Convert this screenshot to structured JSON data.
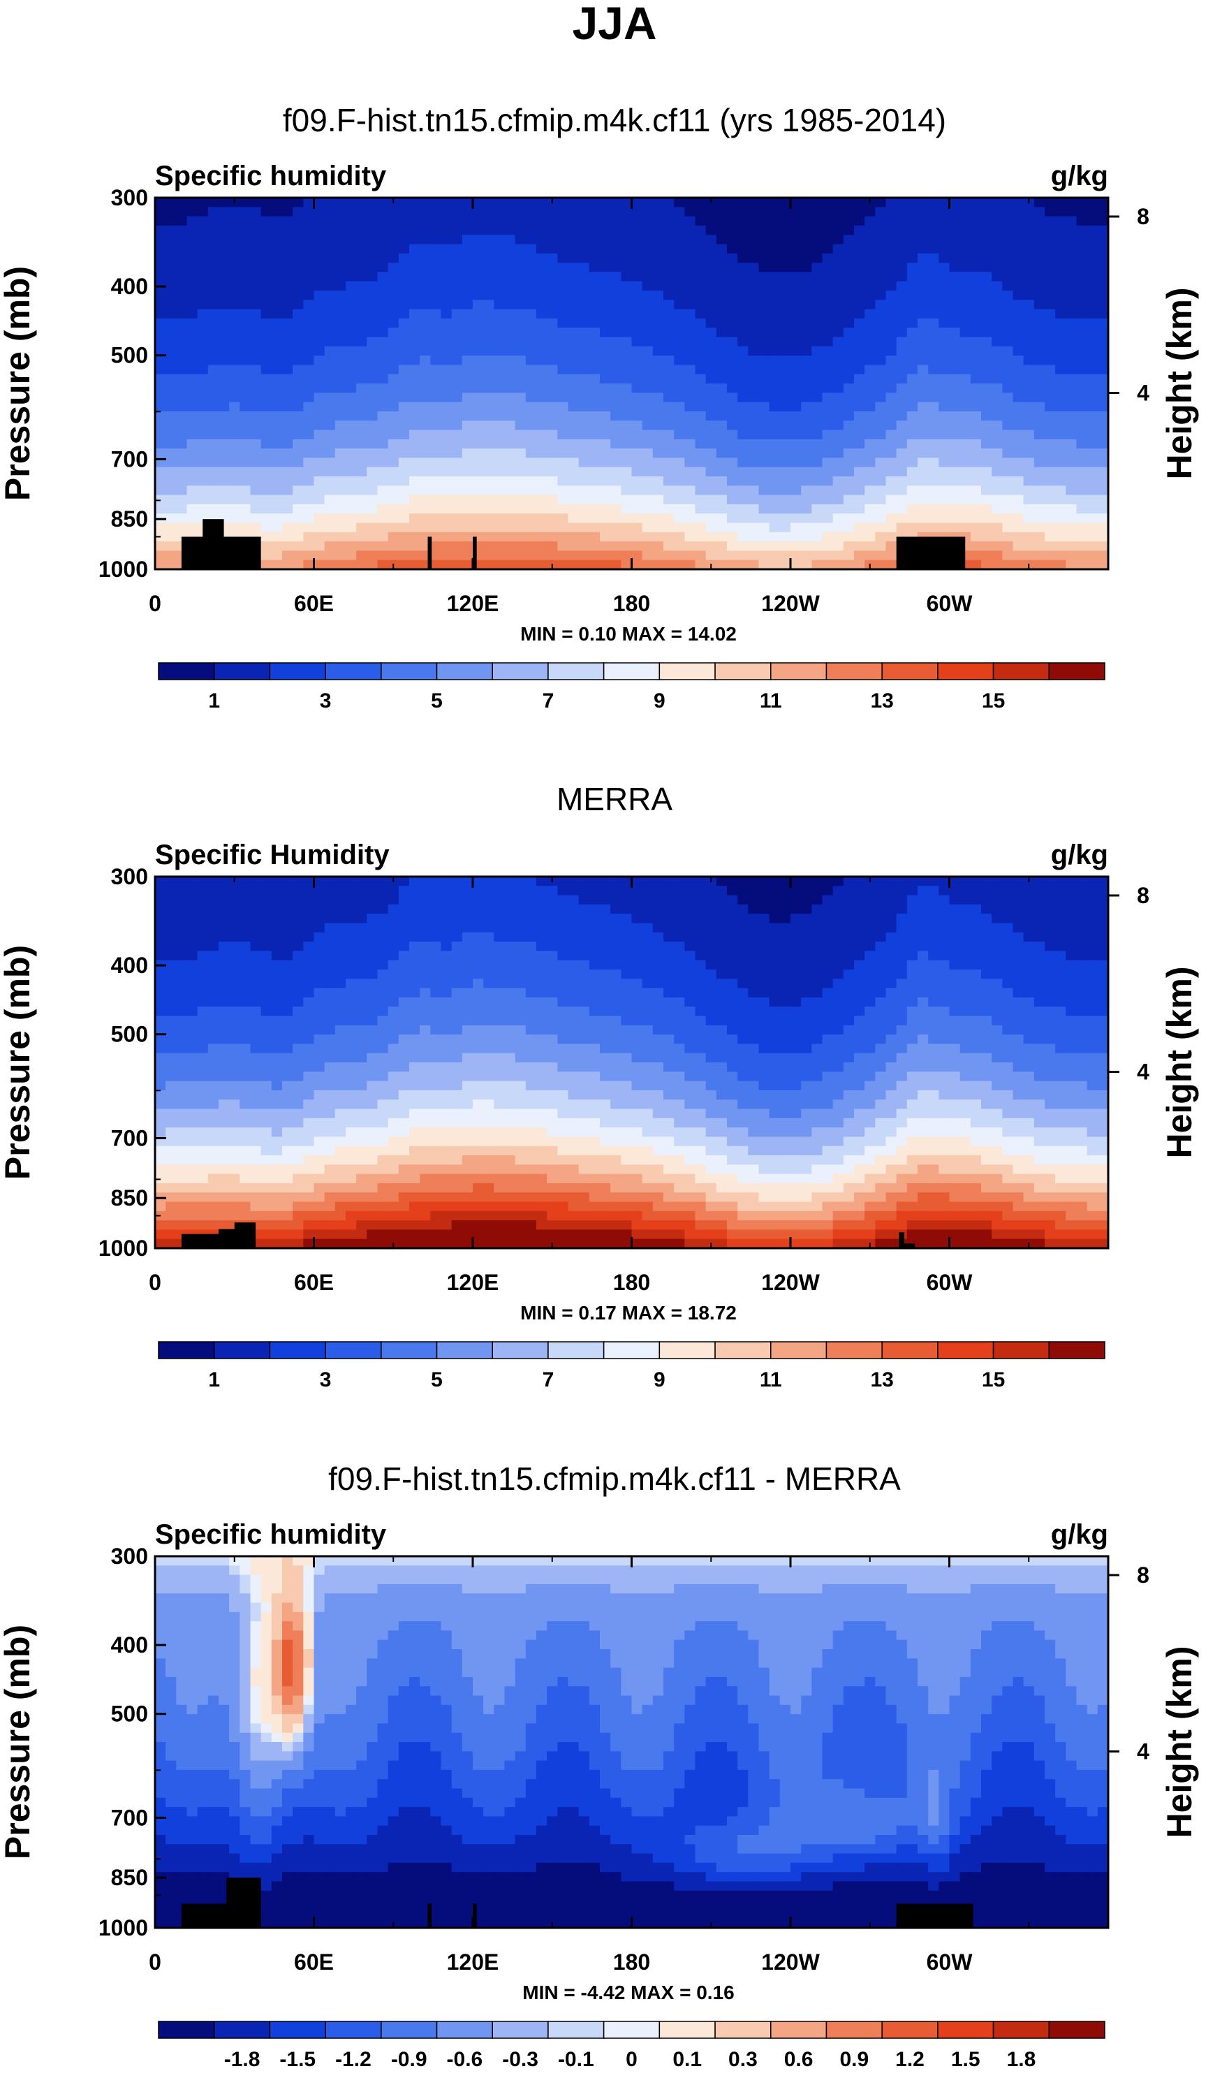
{
  "figure": {
    "title": "JJA"
  },
  "colorbar_palette": [
    "#050c7c",
    "#0a25b3",
    "#1140dc",
    "#2c5de8",
    "#4a79ee",
    "#7096f2",
    "#9db5f5",
    "#c8d8f9",
    "#eaf0fc",
    "#fbe8d9",
    "#f8cbb1",
    "#f4a583",
    "#ef7f58",
    "#e85c34",
    "#e4401b",
    "#c42c11",
    "#8f0c06"
  ],
  "chart_data": [
    {
      "type": "heatmap",
      "title": "f09.F-hist.tn15.cfmip.m4k.cf11 (yrs 1985-2014)",
      "left_label": "Specific humidity",
      "right_label": "g/kg",
      "ylabel": "Pressure (mb)",
      "ylabel_right": "Height (km)",
      "yticks": [
        "300",
        "400",
        "500",
        "700",
        "850",
        "1000"
      ],
      "yticks_right": [
        "8",
        "4"
      ],
      "xticks": [
        "0",
        "60E",
        "120E",
        "180",
        "120W",
        "60W"
      ],
      "xlim": [
        0,
        360
      ],
      "ylim": [
        1000,
        300
      ],
      "minmax": "MIN =   0.10  MAX =  14.02",
      "colorbar_labels": [
        "1",
        "3",
        "5",
        "7",
        "9",
        "11",
        "13",
        "15"
      ],
      "field": "abs",
      "surface": [
        [
          10,
          40,
          900
        ],
        [
          18,
          26,
          850
        ],
        [
          103,
          104.5,
          900
        ],
        [
          120,
          121.5,
          900
        ],
        [
          280,
          306,
          900
        ]
      ],
      "stats": {
        "min": 0.1,
        "max": 14.02
      }
    },
    {
      "type": "heatmap",
      "title": "MERRA",
      "left_label": "Specific Humidity",
      "right_label": "g/kg",
      "ylabel": "Pressure (mb)",
      "ylabel_right": "Height (km)",
      "yticks": [
        "300",
        "400",
        "500",
        "700",
        "850",
        "1000"
      ],
      "yticks_right": [
        "8",
        "4"
      ],
      "xticks": [
        "0",
        "60E",
        "120E",
        "180",
        "120W",
        "60W"
      ],
      "xlim": [
        0,
        360
      ],
      "ylim": [
        1000,
        300
      ],
      "minmax": "MIN =   0.17  MAX =  18.72",
      "colorbar_labels": [
        "1",
        "3",
        "5",
        "7",
        "9",
        "11",
        "13",
        "15"
      ],
      "field": "abs2",
      "surface": [
        [
          10,
          38,
          955
        ],
        [
          24,
          32,
          940
        ],
        [
          30,
          38,
          920
        ],
        [
          281,
          283,
          950
        ],
        [
          282,
          287,
          985
        ]
      ],
      "stats": {
        "min": 0.17,
        "max": 18.72
      }
    },
    {
      "type": "heatmap",
      "title": "f09.F-hist.tn15.cfmip.m4k.cf11 - MERRA",
      "left_label": "Specific humidity",
      "right_label": "g/kg",
      "ylabel": "Pressure (mb)",
      "ylabel_right": "Height (km)",
      "yticks": [
        "300",
        "400",
        "500",
        "700",
        "850",
        "1000"
      ],
      "yticks_right": [
        "8",
        "4"
      ],
      "xticks": [
        "0",
        "60E",
        "120E",
        "180",
        "120W",
        "60W"
      ],
      "xlim": [
        0,
        360
      ],
      "ylim": [
        1000,
        300
      ],
      "minmax": "MIN =  -4.42  MAX =   0.16",
      "colorbar_labels": [
        "-1.8",
        "-1.5",
        "-1.2",
        "-0.9",
        "-0.6",
        "-0.3",
        "-0.1",
        "0",
        "0.1",
        "0.3",
        "0.6",
        "0.9",
        "1.2",
        "1.5",
        "1.8"
      ],
      "field": "diff",
      "surface": [
        [
          10,
          40,
          925
        ],
        [
          27,
          40,
          850
        ],
        [
          103,
          104.5,
          925
        ],
        [
          120,
          121.5,
          925
        ],
        [
          280,
          309,
          925
        ]
      ],
      "stats": {
        "min": -4.42,
        "max": 0.16
      }
    }
  ]
}
